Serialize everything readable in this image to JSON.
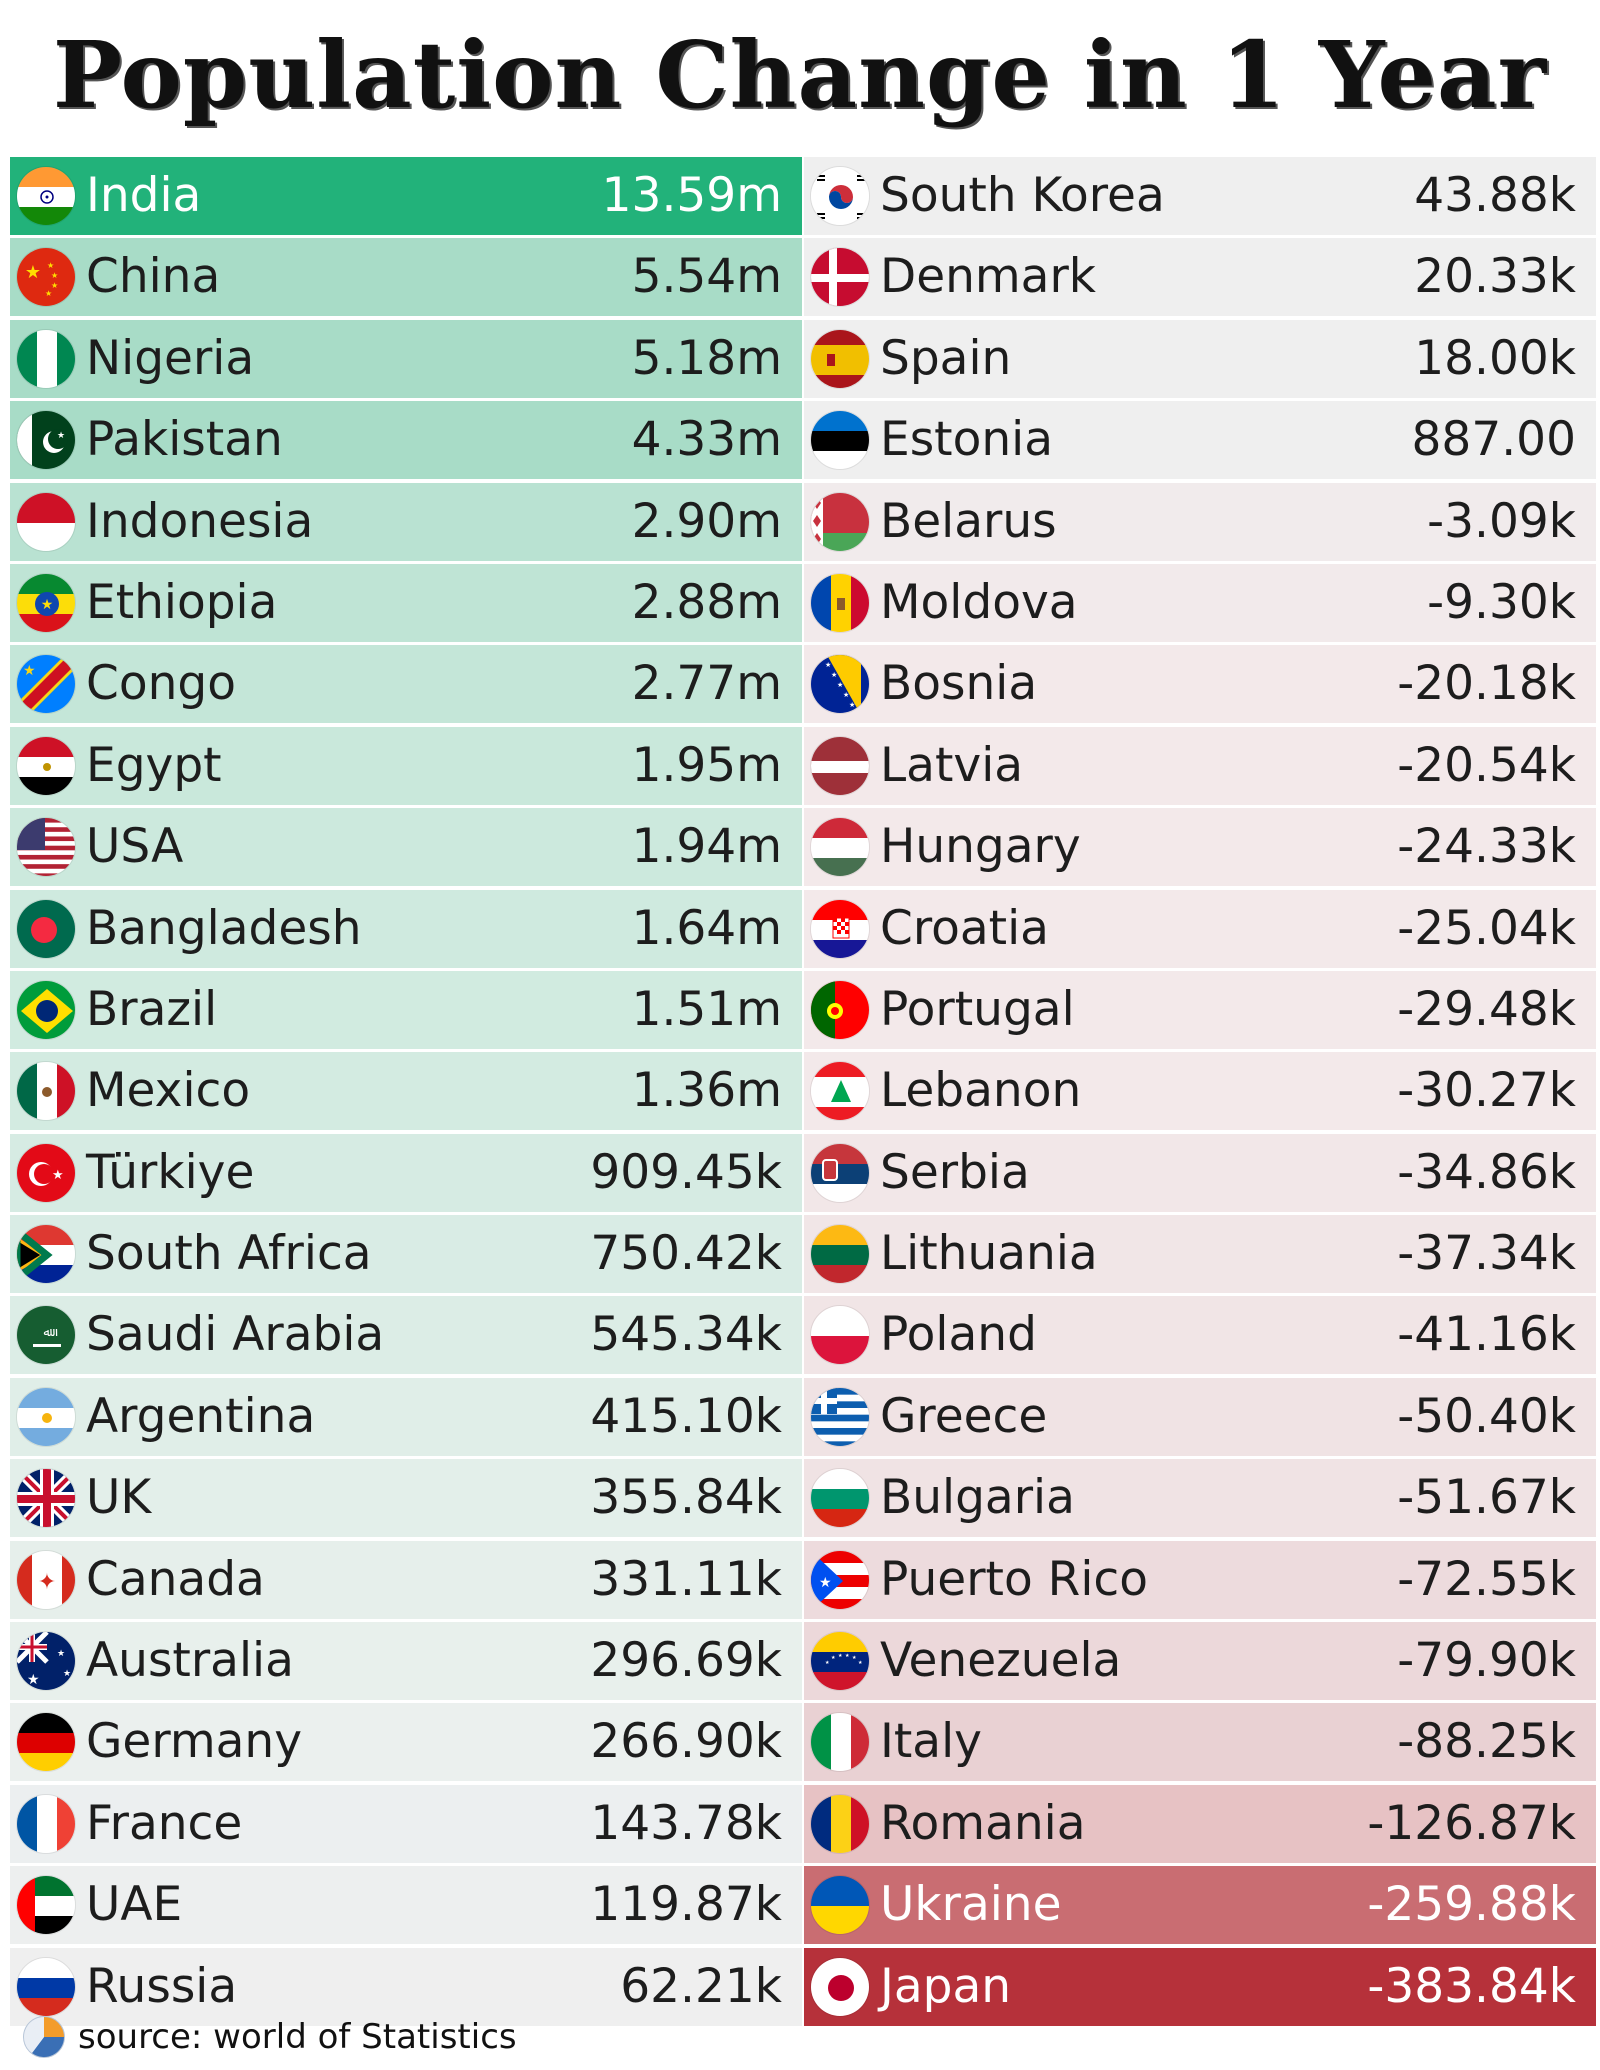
{
  "title": "Population Change in 1 Year",
  "source": "source: world of Statistics",
  "colors": {
    "pos_strong": "#22b27a",
    "pos_mid": "#a8dcc7",
    "pos_light": "#d4ece3",
    "neutral": "#efefef",
    "neg_light": "#f3e9ea",
    "neg_mid": "#e7c2c4",
    "neg_strong1": "#c96d72",
    "neg_strong2": "#b6313a"
  },
  "chart_data": {
    "type": "table",
    "title": "Population Change in 1 Year",
    "columns": [
      [
        {
          "country": "India",
          "value": "13.59m",
          "flag": "in-flag"
        },
        {
          "country": "China",
          "value": "5.54m",
          "flag": "cn-flag"
        },
        {
          "country": "Nigeria",
          "value": "5.18m",
          "flag": "ng-flag"
        },
        {
          "country": "Pakistan",
          "value": "4.33m",
          "flag": "pk-flag"
        },
        {
          "country": "Indonesia",
          "value": "2.90m",
          "flag": "id-flag"
        },
        {
          "country": "Ethiopia",
          "value": "2.88m",
          "flag": "et-flag"
        },
        {
          "country": "Congo",
          "value": "2.77m",
          "flag": "cd-flag"
        },
        {
          "country": "Egypt",
          "value": "1.95m",
          "flag": "eg-flag"
        },
        {
          "country": "USA",
          "value": "1.94m",
          "flag": "us-flag"
        },
        {
          "country": "Bangladesh",
          "value": "1.64m",
          "flag": "bd-flag"
        },
        {
          "country": "Brazil",
          "value": "1.51m",
          "flag": "br-flag"
        },
        {
          "country": "Mexico",
          "value": "1.36m",
          "flag": "mx-flag"
        },
        {
          "country": "Türkiye",
          "value": "909.45k",
          "flag": "tr-flag"
        },
        {
          "country": "South Africa",
          "value": "750.42k",
          "flag": "za-flag"
        },
        {
          "country": "Saudi Arabia",
          "value": "545.34k",
          "flag": "sa-flag"
        },
        {
          "country": "Argentina",
          "value": "415.10k",
          "flag": "ar-flag"
        },
        {
          "country": "UK",
          "value": "355.84k",
          "flag": "gb-flag"
        },
        {
          "country": "Canada",
          "value": "331.11k",
          "flag": "ca-flag"
        },
        {
          "country": "Australia",
          "value": "296.69k",
          "flag": "au-flag"
        },
        {
          "country": "Germany",
          "value": "266.90k",
          "flag": "de-flag"
        },
        {
          "country": "France",
          "value": "143.78k",
          "flag": "fr-flag"
        },
        {
          "country": "UAE",
          "value": "119.87k",
          "flag": "ae-flag"
        },
        {
          "country": "Russia",
          "value": "62.21k",
          "flag": "ru-flag"
        }
      ],
      [
        {
          "country": "South Korea",
          "value": "43.88k",
          "flag": "kr-flag"
        },
        {
          "country": "Denmark",
          "value": "20.33k",
          "flag": "dk-flag"
        },
        {
          "country": "Spain",
          "value": "18.00k",
          "flag": "es-flag"
        },
        {
          "country": "Estonia",
          "value": "887.00",
          "flag": "ee-flag"
        },
        {
          "country": "Belarus",
          "value": "-3.09k",
          "flag": "by-flag"
        },
        {
          "country": "Moldova",
          "value": "-9.30k",
          "flag": "md-flag"
        },
        {
          "country": "Bosnia",
          "value": "-20.18k",
          "flag": "ba-flag"
        },
        {
          "country": "Latvia",
          "value": "-20.54k",
          "flag": "lv-flag"
        },
        {
          "country": "Hungary",
          "value": "-24.33k",
          "flag": "hu-flag"
        },
        {
          "country": "Croatia",
          "value": "-25.04k",
          "flag": "hr-flag"
        },
        {
          "country": "Portugal",
          "value": "-29.48k",
          "flag": "pt-flag"
        },
        {
          "country": "Lebanon",
          "value": "-30.27k",
          "flag": "lb-flag"
        },
        {
          "country": "Serbia",
          "value": "-34.86k",
          "flag": "rs-flag"
        },
        {
          "country": "Lithuania",
          "value": "-37.34k",
          "flag": "lt-flag"
        },
        {
          "country": "Poland",
          "value": "-41.16k",
          "flag": "pl-flag"
        },
        {
          "country": "Greece",
          "value": "-50.40k",
          "flag": "gr-flag"
        },
        {
          "country": "Bulgaria",
          "value": "-51.67k",
          "flag": "bg-flag"
        },
        {
          "country": "Puerto Rico",
          "value": "-72.55k",
          "flag": "pr-flag"
        },
        {
          "country": "Venezuela",
          "value": "-79.90k",
          "flag": "ve-flag"
        },
        {
          "country": "Italy",
          "value": "-88.25k",
          "flag": "it-flag"
        },
        {
          "country": "Romania",
          "value": "-126.87k",
          "flag": "ro-flag"
        },
        {
          "country": "Ukraine",
          "value": "-259.88k",
          "flag": "ua-flag"
        },
        {
          "country": "Japan",
          "value": "-383.84k",
          "flag": "jp-flag"
        }
      ]
    ]
  }
}
